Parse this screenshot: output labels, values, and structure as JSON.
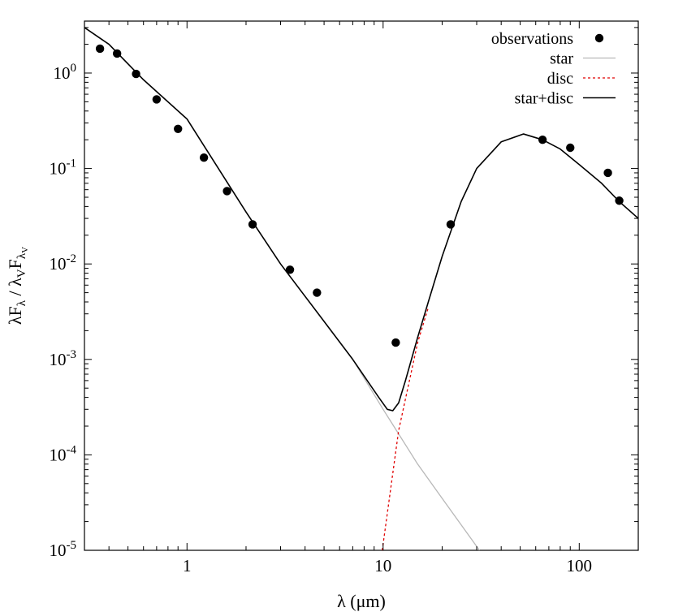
{
  "chart_data": {
    "type": "scatter",
    "log_x": true,
    "log_y": true,
    "xlim": [
      0.3,
      200
    ],
    "ylim": [
      1e-05,
      3.5
    ],
    "grid": false,
    "legend_position": "top-right",
    "xlabel": {
      "base": "λ (μm)"
    },
    "ylabel": {
      "main": "λF",
      "sub1": "λ",
      "mid": " / λ",
      "sub2": "V",
      "main2": "F",
      "sub3": "λ",
      "sub3b": "V"
    },
    "x_ticks": [
      {
        "value": 1,
        "label": "1"
      },
      {
        "value": 10,
        "label": "10"
      },
      {
        "value": 100,
        "label": "100"
      }
    ],
    "y_ticks": [
      {
        "value": 1e-05,
        "base": "10",
        "exp": "-5"
      },
      {
        "value": 0.0001,
        "base": "10",
        "exp": "-4"
      },
      {
        "value": 0.001,
        "base": "10",
        "exp": "-3"
      },
      {
        "value": 0.01,
        "base": "10",
        "exp": "-2"
      },
      {
        "value": 0.1,
        "base": "10",
        "exp": "-1"
      },
      {
        "value": 1,
        "base": "10",
        "exp": "0"
      }
    ],
    "series": [
      {
        "name": "observations",
        "kind": "points",
        "color": "#000000",
        "x": [
          0.36,
          0.44,
          0.55,
          0.7,
          0.9,
          1.22,
          1.6,
          2.16,
          3.35,
          4.6,
          11.6,
          22.1,
          65,
          90,
          140,
          160
        ],
        "y": [
          1.8,
          1.6,
          0.98,
          0.53,
          0.26,
          0.13,
          0.058,
          0.026,
          0.0087,
          0.005,
          0.0015,
          0.026,
          0.2,
          0.165,
          0.09,
          0.046
        ]
      },
      {
        "name": "star",
        "kind": "line",
        "color": "#b8b8b8",
        "dash": "",
        "x": [
          0.3,
          0.4,
          0.6,
          1.0,
          2.0,
          3.0,
          5.0,
          7.0,
          10.0,
          11.0,
          15.0,
          20.0,
          31.0
        ],
        "y": [
          3.0,
          2.0,
          0.85,
          0.33,
          0.035,
          0.01,
          0.0025,
          0.001,
          0.0003,
          0.00022,
          8e-05,
          3.5e-05,
          1e-05
        ]
      },
      {
        "name": "disc",
        "kind": "line",
        "color": "#e00000",
        "dash": "3,3",
        "x": [
          9.9,
          12.0,
          15.0,
          17.0
        ],
        "y": [
          1e-05,
          0.00018,
          0.0015,
          0.0035
        ]
      },
      {
        "name": "star+disc",
        "kind": "line",
        "color": "#000000",
        "dash": "",
        "x": [
          0.3,
          0.4,
          0.6,
          1.0,
          2.0,
          3.0,
          5.0,
          7.0,
          9.5,
          10.5,
          11.2,
          12.0,
          13.0,
          15.0,
          17.0,
          20.0,
          25.0,
          30.0,
          40.0,
          52.0,
          65.0,
          80.0,
          100.0,
          130.0,
          160.0,
          200.0
        ],
        "y": [
          3.0,
          2.0,
          0.85,
          0.33,
          0.035,
          0.01,
          0.0025,
          0.001,
          0.0004,
          0.0003,
          0.00029,
          0.00035,
          0.0006,
          0.0017,
          0.004,
          0.012,
          0.045,
          0.1,
          0.19,
          0.23,
          0.2,
          0.16,
          0.11,
          0.07,
          0.045,
          0.03
        ]
      }
    ]
  }
}
